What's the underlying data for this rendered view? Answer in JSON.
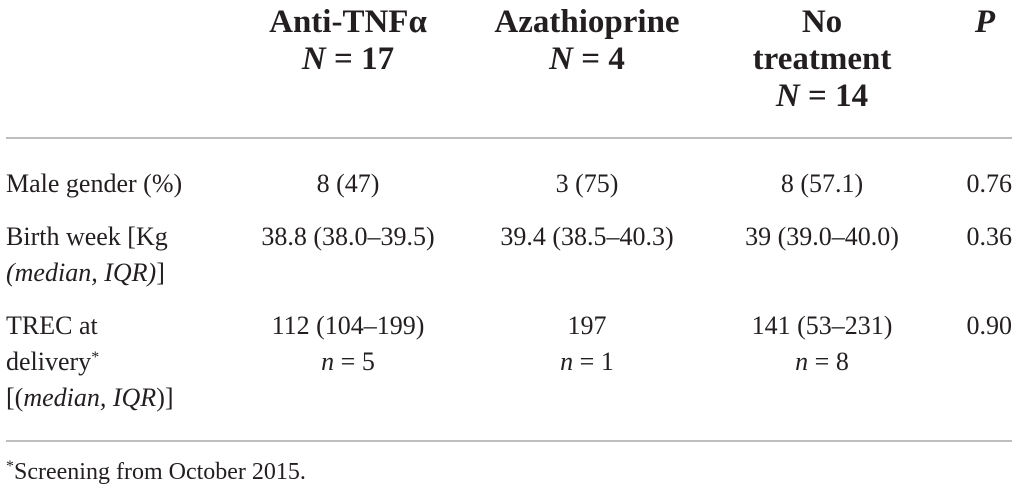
{
  "headers": {
    "col1": {
      "title": "Anti-TNFα",
      "n": "N",
      "eq": " = 17"
    },
    "col2": {
      "title": "Azathioprine",
      "n": "N",
      "eq": " = 4"
    },
    "col3": {
      "title_line1": "No",
      "title_line2": "treatment",
      "n": "N",
      "eq": " = 14"
    },
    "col4": {
      "title": "P"
    }
  },
  "rows": [
    {
      "label": "Male gender (%)",
      "values": [
        "8 (47)",
        "3 (75)",
        "8 (57.1)"
      ],
      "p": "0.76"
    },
    {
      "label_line1": "Birth week [Kg",
      "label_line2_italic": "(median, IQR)",
      "label_line2_tail": "]",
      "values": [
        "38.8 (38.0–39.5)",
        "39.4 (38.5–40.3)",
        "39 (39.0–40.0)"
      ],
      "p": "0.36"
    },
    {
      "label_line1": "TREC at",
      "label_line2": "delivery",
      "label_line2_sup": "*",
      "label_line3_head": "[(",
      "label_line3_italic": "median, IQR",
      "label_line3_tail": ")]",
      "values": [
        "112 (104–199)",
        "197",
        "141 (53–231)"
      ],
      "n_values": [
        {
          "n": "n",
          "eq": " = 5"
        },
        {
          "n": "n",
          "eq": " = 1"
        },
        {
          "n": "n",
          "eq": " = 8"
        }
      ],
      "p": "0.90"
    }
  ],
  "footnote": {
    "sup": "*",
    "text": "Screening from October 2015."
  }
}
